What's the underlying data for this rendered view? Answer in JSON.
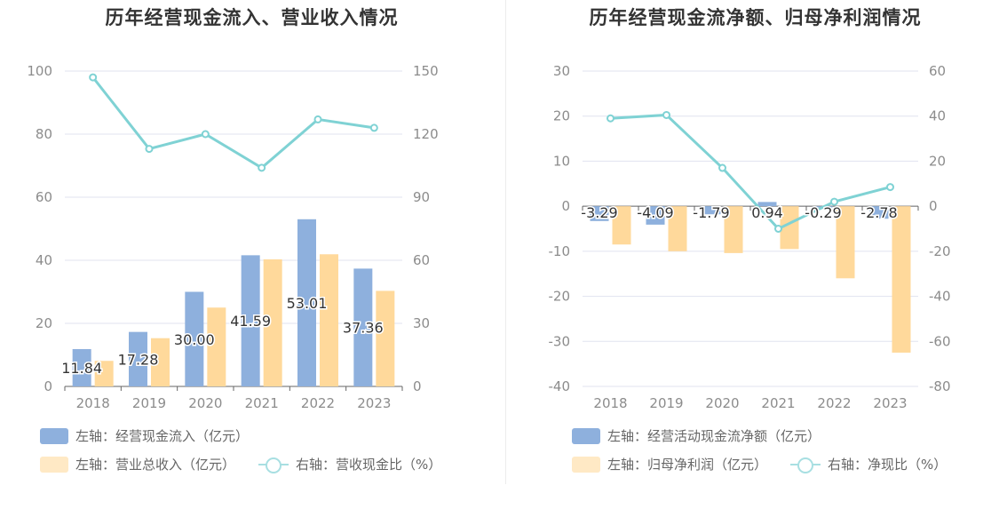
{
  "colors": {
    "blue": "#8eb0dd",
    "orange": "#ffd99b",
    "line": "#7fd2d4",
    "grid": "#e0e3ef",
    "axis_text": "#8c8c8c"
  },
  "charts": [
    {
      "title": "历年经营现金流入、营业收入情况",
      "legend": {
        "bar1": "左轴：经营现金流入（亿元）",
        "bar2": "左轴：营业总收入（亿元）",
        "line": "右轴：营收现金比（%）"
      }
    },
    {
      "title": "历年经营现金流净额、归母净利润情况",
      "legend": {
        "bar1": "左轴：经营活动现金流净额（亿元）",
        "bar2": "左轴：归母净利润（亿元）",
        "line": "右轴：净现比（%）"
      }
    }
  ],
  "chart_data": [
    {
      "type": "bar",
      "title": "历年经营现金流入、营业收入情况",
      "categories": [
        "2018",
        "2019",
        "2020",
        "2021",
        "2022",
        "2023"
      ],
      "left_axis": {
        "min": 0,
        "max": 100,
        "ticks": [
          "0",
          "20",
          "40",
          "60",
          "80",
          "100"
        ]
      },
      "right_axis": {
        "min": 0,
        "max": 150,
        "ticks": [
          "0",
          "30",
          "60",
          "90",
          "120",
          "150"
        ]
      },
      "grid": true,
      "legend_position": "bottom",
      "series": [
        {
          "name": "左轴：经营现金流入（亿元）",
          "kind": "bar",
          "axis": "left",
          "color": "#8eb0dd",
          "values": [
            11.84,
            17.28,
            30.0,
            41.59,
            53.01,
            37.36
          ],
          "labels": [
            "11.84",
            "17.28",
            "30.00",
            "41.59",
            "53.01",
            "37.36"
          ]
        },
        {
          "name": "左轴：营业总收入（亿元）",
          "kind": "bar",
          "axis": "left",
          "color": "#ffd99b",
          "values": [
            8.1,
            15.3,
            25.0,
            40.3,
            41.9,
            30.3
          ]
        },
        {
          "name": "右轴：营收现金比（%）",
          "kind": "line",
          "axis": "right",
          "color": "#7fd2d4",
          "values": [
            147,
            113,
            120,
            104,
            127,
            123
          ]
        }
      ]
    },
    {
      "type": "bar",
      "title": "历年经营现金流净额、归母净利润情况",
      "categories": [
        "2018",
        "2019",
        "2020",
        "2021",
        "2022",
        "2023"
      ],
      "left_axis": {
        "min": -40,
        "max": 30,
        "ticks": [
          "-40",
          "-30",
          "-20",
          "-10",
          "0",
          "10",
          "20",
          "30"
        ]
      },
      "right_axis": {
        "min": -80,
        "max": 60,
        "ticks": [
          "-80",
          "-60",
          "-40",
          "-20",
          "0",
          "20",
          "40",
          "60"
        ]
      },
      "grid": true,
      "legend_position": "bottom",
      "series": [
        {
          "name": "左轴：经营活动现金流净额（亿元）",
          "kind": "bar",
          "axis": "left",
          "color": "#8eb0dd",
          "values": [
            -3.29,
            -4.09,
            -1.79,
            0.94,
            -0.29,
            -2.78
          ],
          "labels": [
            "-3.29",
            "-4.09",
            "-1.79",
            "0.94",
            "-0.29",
            "-2.78"
          ]
        },
        {
          "name": "左轴：归母净利润（亿元）",
          "kind": "bar",
          "axis": "left",
          "color": "#ffd99b",
          "values": [
            -8.5,
            -10.0,
            -10.4,
            -9.5,
            -16.0,
            -32.5
          ]
        },
        {
          "name": "右轴：净现比（%）",
          "kind": "line",
          "axis": "right",
          "color": "#7fd2d4",
          "values": [
            39,
            40.5,
            17,
            -10,
            2,
            8.5
          ]
        }
      ]
    }
  ]
}
